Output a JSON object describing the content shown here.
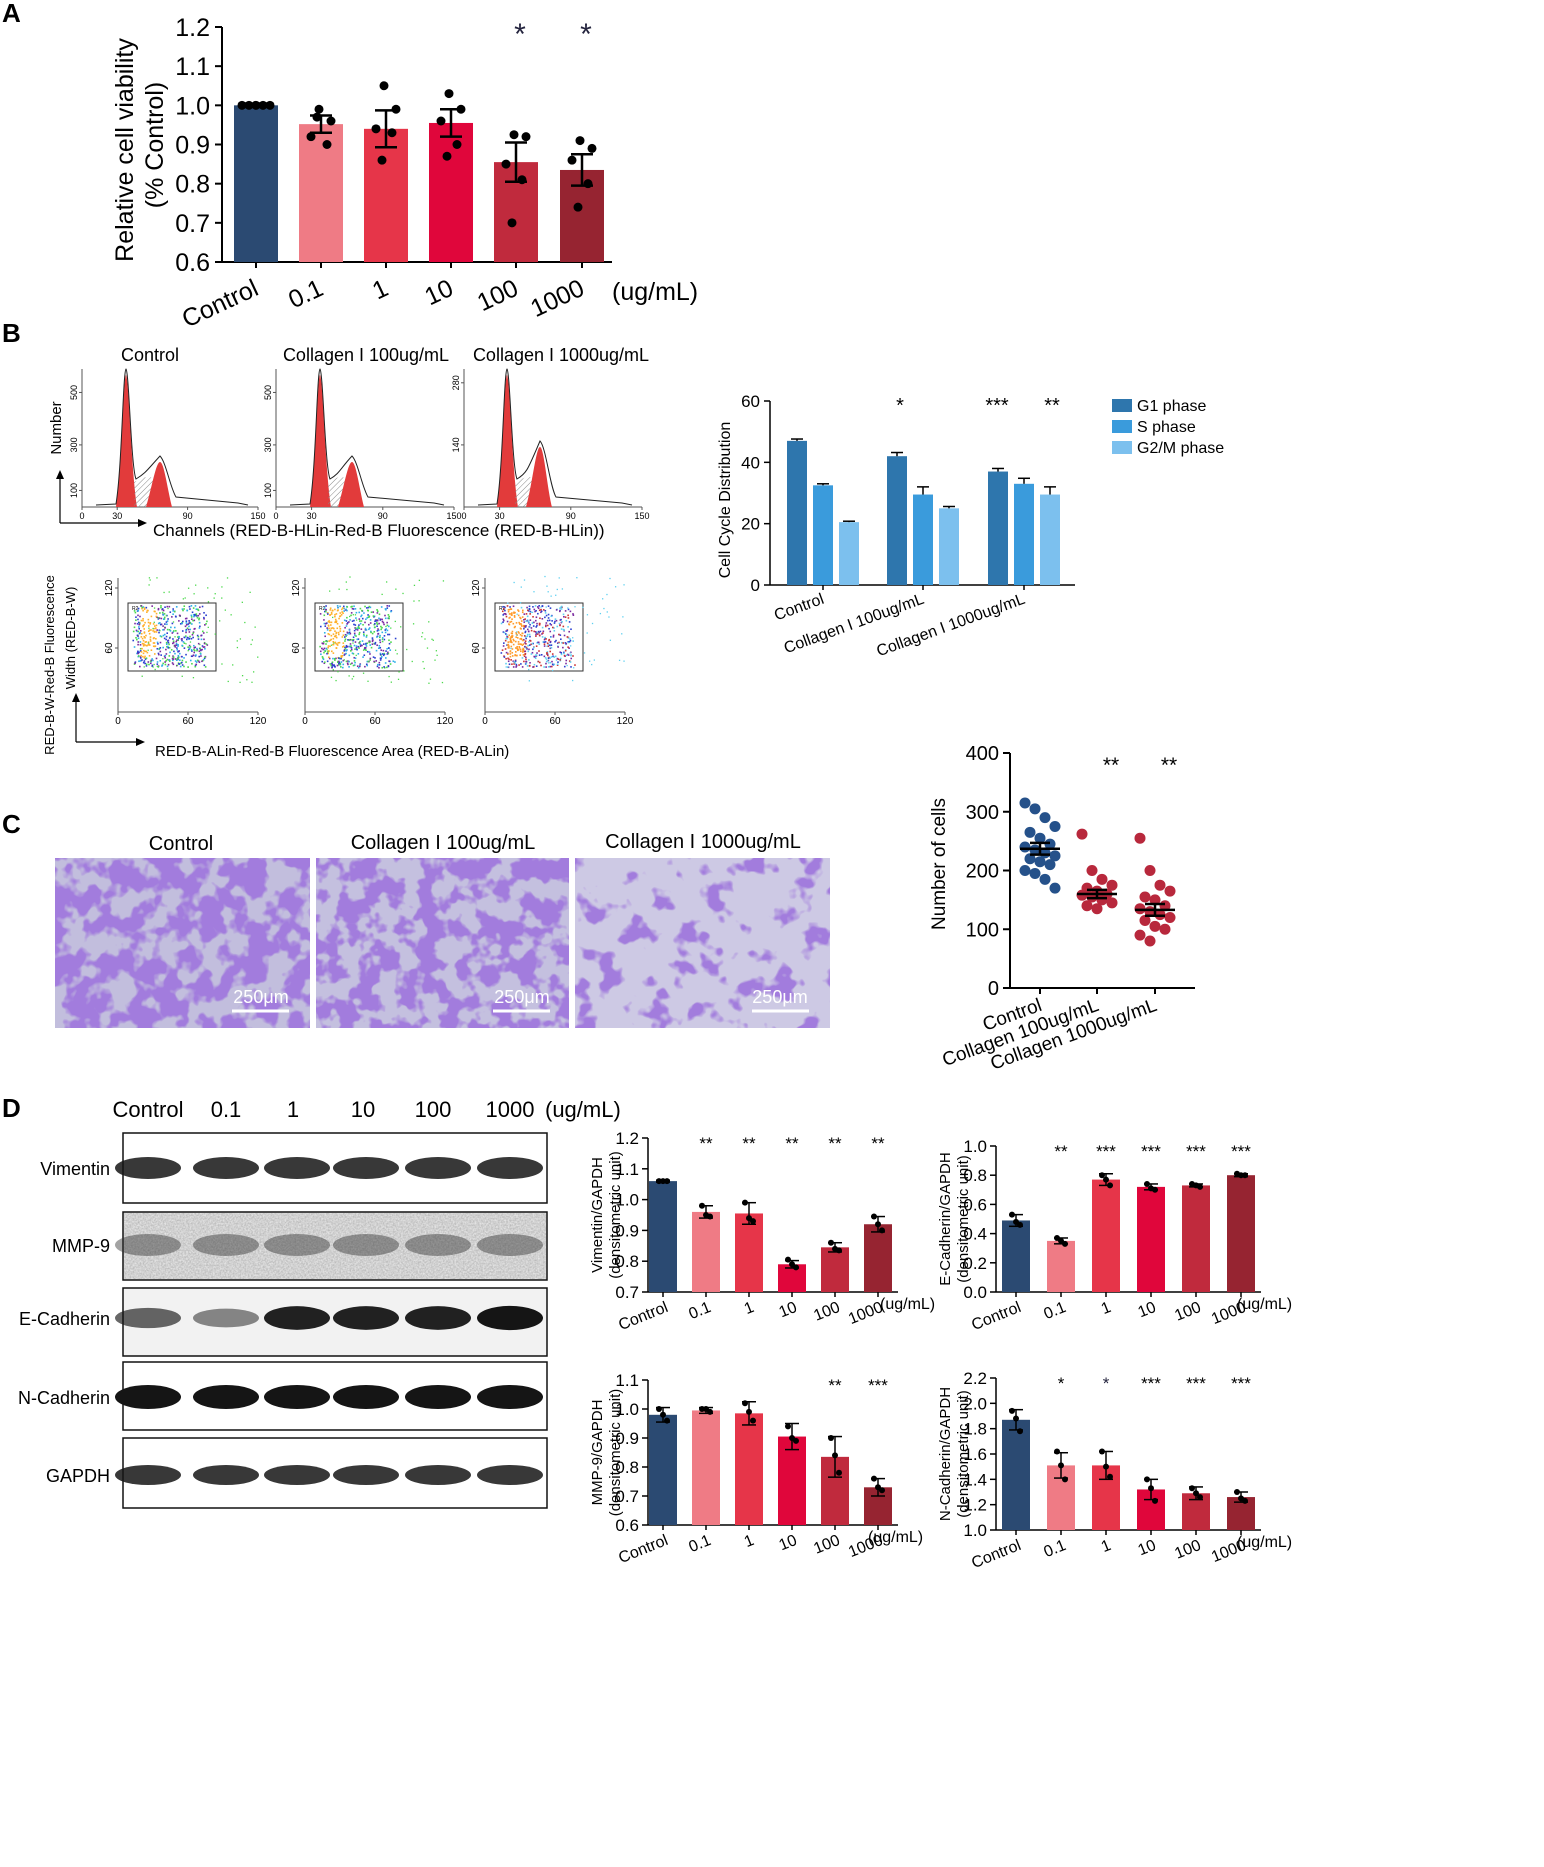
{
  "panels": {
    "A": {
      "letter": "A",
      "ylabel": "Relative cell viability",
      "ylabel2": "(% Control)",
      "unit": "(ug/mL)",
      "sig": [
        "",
        "",
        "",
        "",
        "*",
        "*"
      ]
    },
    "B": {
      "letter": "B",
      "hist_titles": [
        "Control",
        "Collagen I 100ug/mL",
        "Collagen I 1000ug/mL"
      ],
      "hist_ylabel": "Number",
      "hist_xlabel": "Channels (RED-B-HLin-Red-B Fluorescence (RED-B-HLin))",
      "hist_yticks": [
        [
          "100",
          "300",
          "500"
        ],
        [
          "100",
          "300",
          "500"
        ],
        [
          "140",
          "280"
        ]
      ],
      "hist_xticks": [
        "0",
        "30",
        "90",
        "150"
      ],
      "scatter_ylabel": "RED-B-W-Red-B Fluorescence",
      "scatter_ylabel2": "Width  (RED-B-W)",
      "scatter_xlabel": "RED-B-ALin-Red-B Fluorescence Area (RED-B-ALin)",
      "scatter_xticks": [
        "0",
        "60",
        "120"
      ],
      "scatter_yticks": [
        "60",
        "120"
      ],
      "gate_label": "R2",
      "sig": [
        "",
        "*",
        "***",
        "**"
      ]
    },
    "C": {
      "letter": "C",
      "image_titles": [
        "Control",
        "Collagen I 100ug/mL",
        "Collagen I 1000ug/mL"
      ],
      "scale_bar": "250μm",
      "sig": [
        "",
        "**",
        "**"
      ]
    },
    "D": {
      "letter": "D",
      "lane_labels": [
        "Control",
        "0.1",
        "1",
        "10",
        "100",
        "1000",
        "(ug/mL)"
      ],
      "blot_rows": [
        "Vimentin",
        "MMP-9",
        "E-Cadherin",
        "N-Cadherin",
        "GAPDH"
      ]
    }
  },
  "colors": {
    "control": "#2b4a72",
    "c01": "#ef7b85",
    "c1": "#e63549",
    "c10": "#e0063b",
    "c100": "#c02a3d",
    "c1000": "#962431",
    "g1": "#2e76ad",
    "s": "#3a9bdc",
    "g2m": "#7cc0ee",
    "scatter_control": "#25518a",
    "scatter_collagen": "#b8283c"
  },
  "chart_data": [
    {
      "id": "A",
      "type": "bar",
      "categories": [
        "Control",
        "0.1",
        "1",
        "10",
        "100",
        "1000"
      ],
      "values": [
        1.0,
        0.952,
        0.94,
        0.955,
        0.855,
        0.835
      ],
      "sem": [
        0.0,
        0.022,
        0.047,
        0.035,
        0.05,
        0.04
      ],
      "points": [
        [
          1.0,
          1.0,
          1.0,
          1.0,
          1.0
        ],
        [
          0.99,
          0.96,
          0.92,
          0.9,
          0.97
        ],
        [
          1.05,
          0.99,
          0.94,
          0.93,
          0.86
        ],
        [
          1.03,
          0.99,
          0.96,
          0.9,
          0.87
        ],
        [
          0.925,
          0.92,
          0.85,
          0.81,
          0.7
        ],
        [
          0.91,
          0.89,
          0.86,
          0.8,
          0.74
        ]
      ],
      "ylim": [
        0.6,
        1.2
      ],
      "yticks": [
        0.6,
        0.7,
        0.8,
        0.9,
        1.0,
        1.1,
        1.2
      ],
      "ytick_labels": [
        "0.6",
        "0.7",
        "0.8",
        "0.9",
        "1.0",
        "1.1",
        "1.2"
      ]
    },
    {
      "id": "B-bar",
      "type": "bar",
      "ylabel": "Cell Cycle Distribution",
      "categories": [
        "Control",
        "Collagen I 100ug/mL",
        "Collagen I 1000ug/mL"
      ],
      "series": [
        {
          "name": "G1 phase",
          "values": [
            47,
            42,
            37
          ],
          "err": [
            0.6,
            1.2,
            1.0
          ]
        },
        {
          "name": "S phase",
          "values": [
            32.5,
            29.5,
            33
          ],
          "err": [
            0.5,
            2.5,
            1.8
          ]
        },
        {
          "name": "G2/M phase",
          "values": [
            20.5,
            25,
            29.5
          ],
          "err": [
            0.3,
            0.6,
            2.5
          ]
        }
      ],
      "ylim": [
        0,
        60
      ],
      "yticks": [
        0,
        20,
        40,
        60
      ],
      "legend": "top-right"
    },
    {
      "id": "C-scatter",
      "type": "scatter",
      "ylabel": "Number of cells",
      "categories": [
        "Control",
        "Collagen 100ug/mL",
        "Collagen 1000ug/mL"
      ],
      "means": [
        237,
        160,
        133
      ],
      "sem": [
        10,
        7,
        10
      ],
      "points": [
        [
          315,
          305,
          290,
          275,
          265,
          255,
          245,
          240,
          235,
          230,
          225,
          220,
          215,
          210,
          200,
          195,
          185,
          170
        ],
        [
          262,
          200,
          185,
          175,
          170,
          165,
          160,
          158,
          155,
          150,
          145,
          140,
          135
        ],
        [
          255,
          200,
          175,
          165,
          155,
          150,
          140,
          135,
          130,
          125,
          120,
          115,
          105,
          100,
          90,
          80
        ]
      ],
      "ylim": [
        0,
        400
      ],
      "yticks": [
        0,
        100,
        200,
        300,
        400
      ]
    },
    {
      "id": "D-vim",
      "type": "bar",
      "ylabel": "Vimentin/GAPDH",
      "ylabel2": "(densitometric unit)",
      "unit": "(ug/mL)",
      "categories": [
        "Control",
        "0.1",
        "1",
        "10",
        "100",
        "1000"
      ],
      "values": [
        1.06,
        0.96,
        0.955,
        0.79,
        0.845,
        0.92
      ],
      "err": [
        0.003,
        0.02,
        0.035,
        0.012,
        0.015,
        0.025
      ],
      "points": [
        [
          1.06,
          1.06,
          1.06
        ],
        [
          0.98,
          0.95,
          0.945
        ],
        [
          0.99,
          0.94,
          0.93
        ],
        [
          0.805,
          0.79,
          0.78
        ],
        [
          0.86,
          0.84,
          0.835
        ],
        [
          0.945,
          0.92,
          0.9
        ]
      ],
      "ylim": [
        0.7,
        1.2
      ],
      "yticks": [
        0.7,
        0.8,
        0.9,
        1.0,
        1.1,
        1.2
      ],
      "ytick_labels": [
        "0.7",
        "0.8",
        "0.9",
        "1.0",
        "1.1",
        "1.2"
      ],
      "sig": [
        "",
        "**",
        "**",
        "**",
        "**",
        "**"
      ]
    },
    {
      "id": "D-ecad",
      "type": "bar",
      "ylabel": "E-Cadherin/GAPDH",
      "ylabel2": "(densitometric unit)",
      "unit": "(ug/mL)",
      "categories": [
        "Control",
        "0.1",
        "1",
        "10",
        "100",
        "1000"
      ],
      "values": [
        0.49,
        0.35,
        0.77,
        0.72,
        0.73,
        0.8
      ],
      "err": [
        0.04,
        0.02,
        0.04,
        0.02,
        0.01,
        0.01
      ],
      "points": [
        [
          0.53,
          0.48,
          0.46
        ],
        [
          0.37,
          0.35,
          0.33
        ],
        [
          0.8,
          0.77,
          0.73
        ],
        [
          0.74,
          0.71,
          0.7
        ],
        [
          0.74,
          0.73,
          0.72
        ],
        [
          0.81,
          0.8,
          0.8
        ]
      ],
      "ylim": [
        0.0,
        1.0
      ],
      "yticks": [
        0.0,
        0.2,
        0.4,
        0.6,
        0.8,
        1.0
      ],
      "ytick_labels": [
        "0.0",
        "0.2",
        "0.4",
        "0.6",
        "0.8",
        "1.0"
      ],
      "sig": [
        "",
        "**",
        "***",
        "***",
        "***",
        "***"
      ]
    },
    {
      "id": "D-mmp",
      "type": "bar",
      "ylabel": "MMP-9/GAPDH",
      "ylabel2": "(densitometric unit)",
      "unit": "(ug/mL)",
      "categories": [
        "Control",
        "0.1",
        "1",
        "10",
        "100",
        "1000"
      ],
      "values": [
        0.98,
        0.995,
        0.985,
        0.905,
        0.835,
        0.73
      ],
      "err": [
        0.025,
        0.01,
        0.04,
        0.045,
        0.07,
        0.03
      ],
      "points": [
        [
          1.0,
          0.98,
          0.96
        ],
        [
          1.0,
          1.0,
          0.99
        ],
        [
          1.02,
          0.99,
          0.96
        ],
        [
          0.94,
          0.9,
          0.89
        ],
        [
          0.9,
          0.84,
          0.78
        ],
        [
          0.76,
          0.73,
          0.72
        ]
      ],
      "ylim": [
        0.6,
        1.1
      ],
      "yticks": [
        0.6,
        0.7,
        0.8,
        0.9,
        1.0,
        1.1
      ],
      "ytick_labels": [
        "0.6",
        "0.7",
        "0.8",
        "0.9",
        "1.0",
        "1.1"
      ],
      "sig": [
        "",
        "",
        "",
        "",
        "**",
        "***"
      ]
    },
    {
      "id": "D-ncad",
      "type": "bar",
      "ylabel": "N-Cadherin/GAPDH",
      "ylabel2": "(densitometric unit)",
      "unit": "(ug/mL)",
      "categories": [
        "Control",
        "0.1",
        "1",
        "10",
        "100",
        "1000"
      ],
      "values": [
        1.87,
        1.51,
        1.51,
        1.32,
        1.29,
        1.26
      ],
      "err": [
        0.08,
        0.1,
        0.11,
        0.08,
        0.05,
        0.04
      ],
      "points": [
        [
          1.94,
          1.88,
          1.78
        ],
        [
          1.62,
          1.51,
          1.4
        ],
        [
          1.62,
          1.5,
          1.42
        ],
        [
          1.4,
          1.33,
          1.23
        ],
        [
          1.33,
          1.29,
          1.26
        ],
        [
          1.3,
          1.25,
          1.23
        ]
      ],
      "ylim": [
        1.0,
        2.2
      ],
      "yticks": [
        1.0,
        1.2,
        1.4,
        1.6,
        1.8,
        2.0,
        2.2
      ],
      "ytick_labels": [
        "1.0",
        "1.2",
        "1.4",
        "1.6",
        "1.8",
        "2.0",
        "2.2"
      ],
      "sig": [
        "",
        "*",
        "*",
        "***",
        "***",
        "***"
      ]
    }
  ]
}
